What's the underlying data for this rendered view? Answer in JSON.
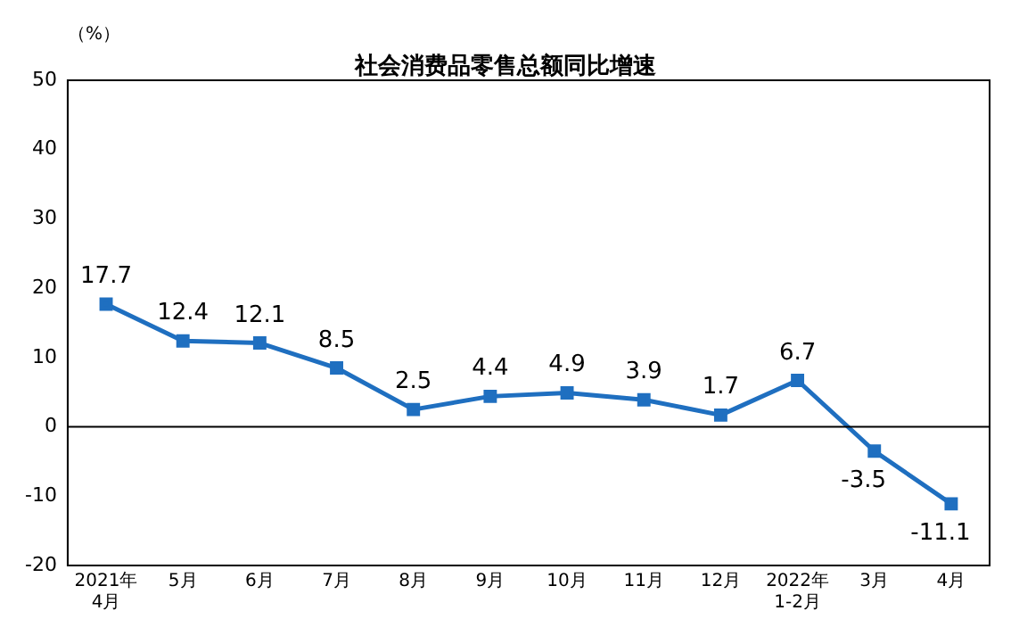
{
  "chart_data": {
    "type": "line",
    "title": "社会消费品零售总额同比增速",
    "ylabel": "（%）",
    "categories": [
      "2021年\n4月",
      "5月",
      "6月",
      "7月",
      "8月",
      "9月",
      "10月",
      "11月",
      "12月",
      "2022年\n1-2月",
      "3月",
      "4月"
    ],
    "series": [
      {
        "color": "#1f6fc0",
        "values": [
          17.7,
          12.4,
          12.1,
          8.5,
          2.5,
          4.4,
          4.9,
          3.9,
          1.7,
          6.7,
          -3.5,
          -11.1
        ]
      }
    ],
    "ylim": [
      -20,
      50
    ],
    "yticks": [
      -20,
      -10,
      0,
      10,
      20,
      30,
      40,
      50
    ],
    "ref_lines": [
      {
        "axis": "y",
        "value": 0,
        "color": "#000000"
      }
    ],
    "grid": false,
    "legend": false,
    "marker": "square",
    "line_style": "solid",
    "data_labels": true
  }
}
